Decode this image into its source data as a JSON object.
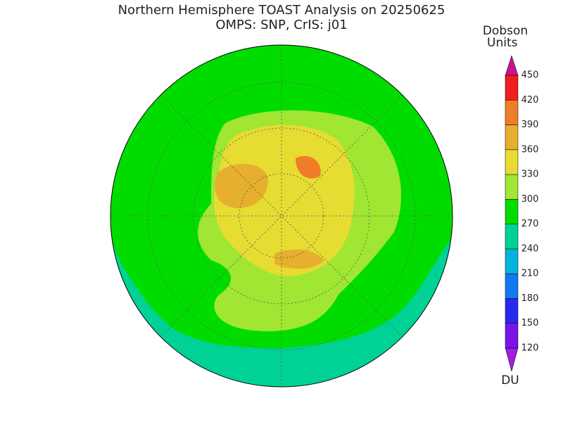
{
  "title": [
    "Northern Hemisphere TOAST Analysis on 20250625",
    "OMPS: SNP, CrIS: j01"
  ],
  "colorbar": {
    "title": [
      "Dobson",
      "Units"
    ],
    "unit": "DU",
    "levels": [
      120,
      150,
      180,
      210,
      240,
      270,
      300,
      330,
      360,
      390,
      420,
      450
    ],
    "colors": [
      "#a01ee0",
      "#7a14e6",
      "#2828f0",
      "#1478f0",
      "#00b4dc",
      "#00d296",
      "#00dc00",
      "#a0e632",
      "#e6dc32",
      "#e6af2d",
      "#f07d28",
      "#f01e1e",
      "#c8168c"
    ]
  }
}
